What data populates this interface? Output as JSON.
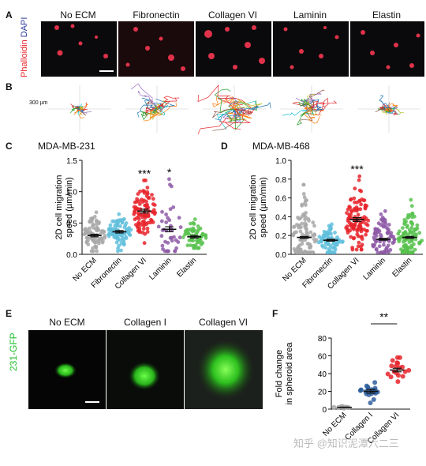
{
  "panelA": {
    "letter": "A",
    "stain_label_red": "Phalloidin",
    "stain_label_blue": "DAPI",
    "columns": [
      "No ECM",
      "Fibronectin",
      "Collagen VI",
      "Laminin",
      "Elastin"
    ]
  },
  "panelB": {
    "letter": "B",
    "scale_label": "300 µm"
  },
  "panelC": {
    "letter": "C",
    "title": "MDA-MB-231",
    "ylabel": "2D cell migration speed (µm/min)"
  },
  "panelD": {
    "letter": "D",
    "title": "MDA-MB-468",
    "ylabel": "2D cell migration speed (µm/min)"
  },
  "panelE": {
    "letter": "E",
    "side_label": "231-GFP",
    "columns": [
      "No ECM",
      "Collagen I",
      "Collagen VI"
    ]
  },
  "panelF": {
    "letter": "F",
    "ylabel": "Fold change in spheroid area",
    "significance": "**"
  },
  "watermark": "知乎 @知识泥潭六二三",
  "chart_data": [
    {
      "id": "C",
      "type": "scatter",
      "title": "MDA-MB-231",
      "ylabel": "2D cell migration speed (µm/min)",
      "categories": [
        "No ECM",
        "Fibronectin",
        "Collagen VI",
        "Laminin",
        "Elastin"
      ],
      "means": [
        0.3,
        0.36,
        0.69,
        0.4,
        0.28
      ],
      "sem": [
        0.02,
        0.02,
        0.03,
        0.04,
        0.02
      ],
      "max": [
        0.67,
        0.64,
        1.18,
        1.2,
        0.56
      ],
      "min": [
        0.05,
        0.05,
        0.18,
        0.05,
        0.1
      ],
      "n": [
        80,
        90,
        95,
        40,
        60
      ],
      "significance": [
        "",
        "",
        "***",
        "*",
        ""
      ],
      "colors": [
        "#a8a8a8",
        "#62bfdc",
        "#e8252c",
        "#8e5ba7",
        "#58c24f"
      ],
      "ylim": [
        0,
        1.5
      ],
      "yticks": [
        0.0,
        0.5,
        1.0,
        1.5
      ]
    },
    {
      "id": "D",
      "type": "scatter",
      "title": "MDA-MB-468",
      "ylabel": "2D cell migration speed (µm/min)",
      "categories": [
        "No ECM",
        "Fibronectin",
        "Collagen VI",
        "Laminin",
        "Elastin"
      ],
      "means": [
        0.18,
        0.15,
        0.37,
        0.16,
        0.18
      ],
      "sem": [
        0.01,
        0.01,
        0.02,
        0.01,
        0.01
      ],
      "max": [
        0.74,
        0.32,
        0.83,
        0.46,
        0.58
      ],
      "min": [
        0.02,
        0.02,
        0.05,
        0.02,
        0.02
      ],
      "n": [
        110,
        70,
        110,
        80,
        100
      ],
      "significance": [
        "",
        "",
        "***",
        "",
        ""
      ],
      "colors": [
        "#a8a8a8",
        "#62bfdc",
        "#e8252c",
        "#8e5ba7",
        "#58c24f"
      ],
      "ylim": [
        0,
        1.0
      ],
      "yticks": [
        0.0,
        0.2,
        0.4,
        0.6,
        0.8,
        1.0
      ]
    },
    {
      "id": "F",
      "type": "scatter",
      "ylabel": "Fold change in spheroid area",
      "categories": [
        "No ECM",
        "Collagen I",
        "Collagen VI"
      ],
      "means": [
        2,
        20,
        44
      ],
      "sem": [
        0.3,
        2,
        2
      ],
      "max": [
        3,
        30,
        58
      ],
      "min": [
        1,
        7,
        31
      ],
      "n": [
        10,
        22,
        18
      ],
      "significance_pair": [
        "Collagen I",
        "Collagen VI"
      ],
      "significance": "**",
      "colors": [
        "#a8a8a8",
        "#2f5f9e",
        "#e8252c"
      ],
      "ylim": [
        0,
        80
      ],
      "yticks": [
        0,
        20,
        40,
        60,
        80
      ]
    }
  ]
}
